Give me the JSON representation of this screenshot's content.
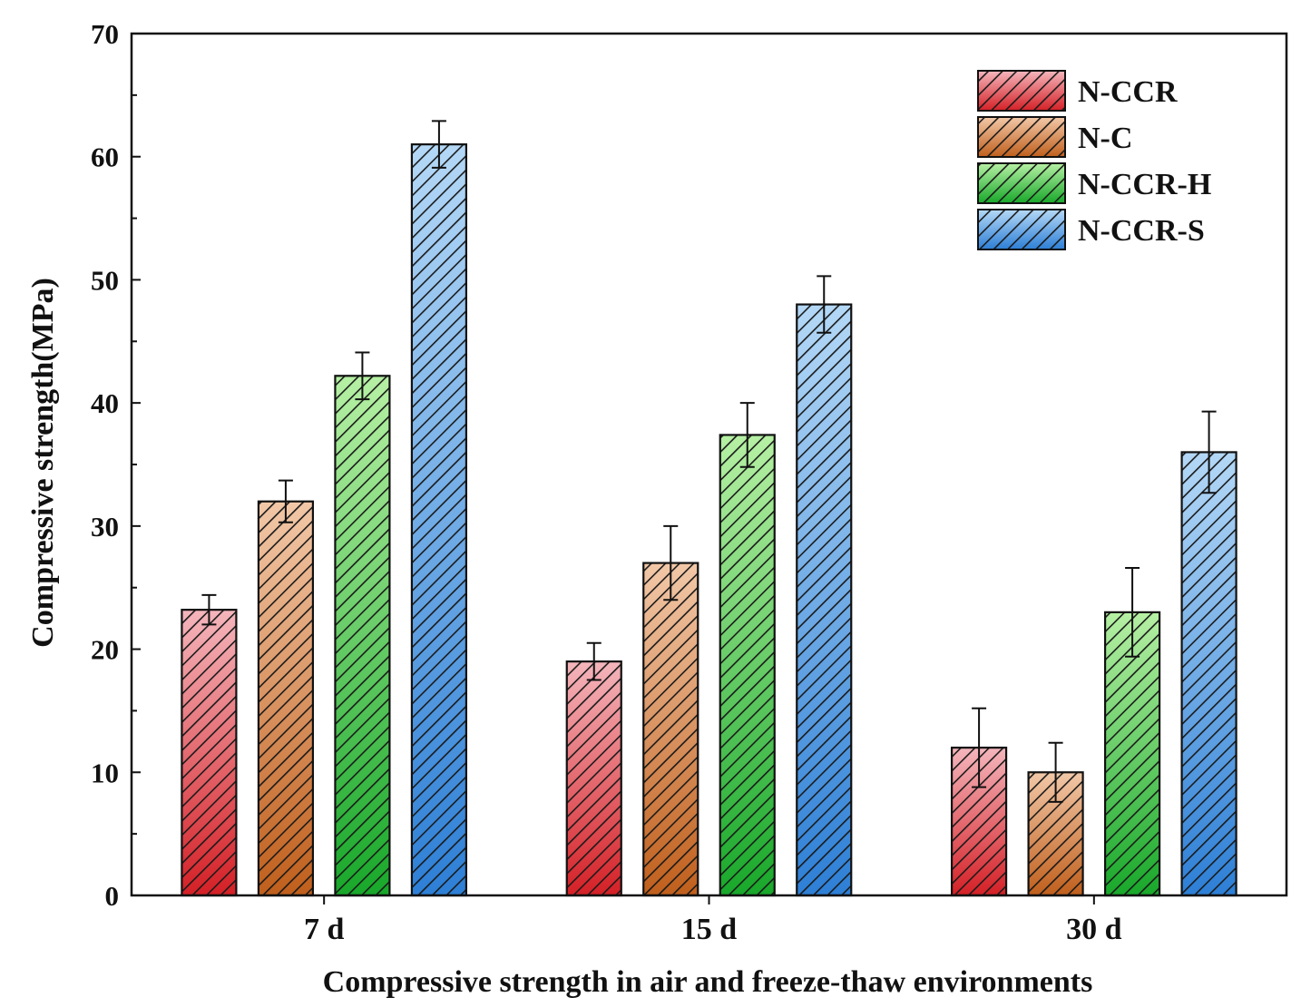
{
  "chart_data": {
    "type": "bar",
    "title": "",
    "xlabel": "Compressive strength in air and freeze-thaw environments",
    "ylabel": "Compressive strength(MPa)",
    "ylim": [
      0,
      70
    ],
    "yticks": [
      0,
      10,
      20,
      30,
      40,
      50,
      60,
      70
    ],
    "categories": [
      "7 d",
      "15 d",
      "30 d"
    ],
    "legend_position": "top-right",
    "series": [
      {
        "name": "N-CCR",
        "color_light": "#f4b6bc",
        "color_dark": "#d42026",
        "values": [
          23.2,
          19.0,
          12.0
        ],
        "errors": [
          1.2,
          1.5,
          3.2
        ]
      },
      {
        "name": "N-C",
        "color_light": "#f2c8a8",
        "color_dark": "#c05f1c",
        "values": [
          32.0,
          27.0,
          10.0
        ],
        "errors": [
          1.7,
          3.0,
          2.4
        ]
      },
      {
        "name": "N-CCR-H",
        "color_light": "#b6f0a4",
        "color_dark": "#18a82a",
        "values": [
          42.2,
          37.4,
          23.0
        ],
        "errors": [
          1.9,
          2.6,
          3.6
        ]
      },
      {
        "name": "N-CCR-S",
        "color_light": "#b4d8f6",
        "color_dark": "#2d7fd6",
        "values": [
          61.0,
          48.0,
          36.0
        ],
        "errors": [
          1.9,
          2.3,
          3.3
        ]
      }
    ]
  }
}
